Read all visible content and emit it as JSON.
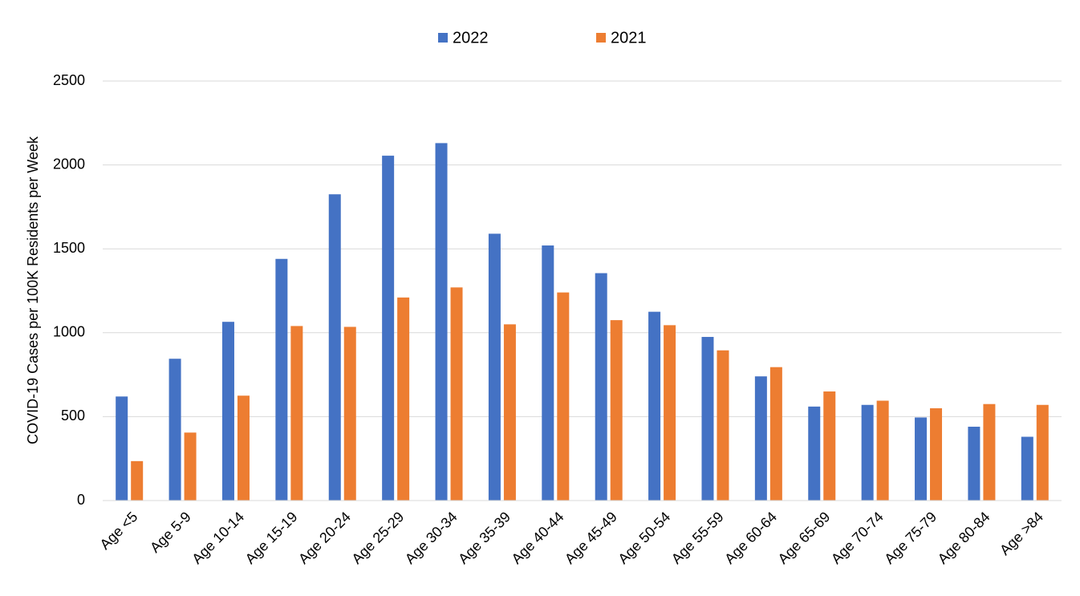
{
  "chart_data": {
    "type": "bar",
    "y_label": "COVID-19 Cases per 100K Residents per Week",
    "categories": [
      "Age <5",
      "Age 5-9",
      "Age 10-14",
      "Age 15-19",
      "Age 20-24",
      "Age 25-29",
      "Age 30-34",
      "Age 35-39",
      "Age 40-44",
      "Age 45-49",
      "Age 50-54",
      "Age 55-59",
      "Age 60-64",
      "Age 65-69",
      "Age 70-74",
      "Age 75-79",
      "Age 80-84",
      "Age >84"
    ],
    "series": [
      {
        "name": "2022",
        "color": "#4472c4",
        "values": [
          620,
          845,
          1065,
          1440,
          1825,
          2055,
          2130,
          1590,
          1520,
          1355,
          1125,
          975,
          740,
          560,
          570,
          495,
          440,
          380
        ]
      },
      {
        "name": "2021",
        "color": "#ed7d31",
        "values": [
          235,
          405,
          625,
          1040,
          1035,
          1210,
          1270,
          1050,
          1240,
          1075,
          1045,
          895,
          795,
          650,
          595,
          550,
          575,
          570
        ]
      }
    ],
    "ylim": [
      0,
      2500
    ],
    "yticks": [
      0,
      500,
      1000,
      1500,
      2000,
      2500
    ],
    "grid": true,
    "legend": "top"
  }
}
